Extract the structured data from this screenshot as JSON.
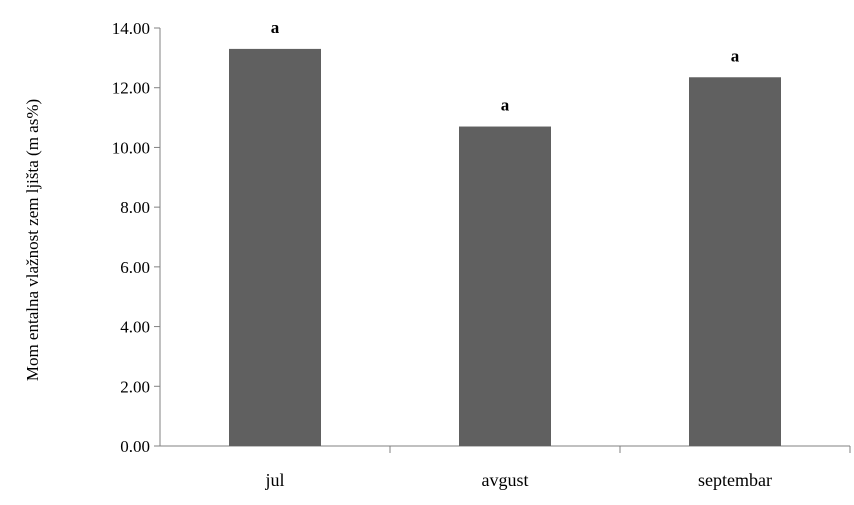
{
  "chart_data": {
    "type": "bar",
    "title": "",
    "xlabel": "",
    "ylabel": "Mom entalna vlažnost zem ljišta (m as%)",
    "categories": [
      "jul",
      "avgust",
      "septembar"
    ],
    "values": [
      13.3,
      10.7,
      12.35
    ],
    "data_labels": [
      "a",
      "a",
      "a"
    ],
    "ylim": [
      0,
      14
    ],
    "yticks": [
      0,
      2,
      4,
      6,
      8,
      10,
      12,
      14
    ],
    "ytick_labels": [
      "0.00",
      "2.00",
      "4.00",
      "6.00",
      "8.00",
      "10.00",
      "12.00",
      "14.00"
    ],
    "bar_color": "#606060",
    "grid": false,
    "legend": "none"
  }
}
